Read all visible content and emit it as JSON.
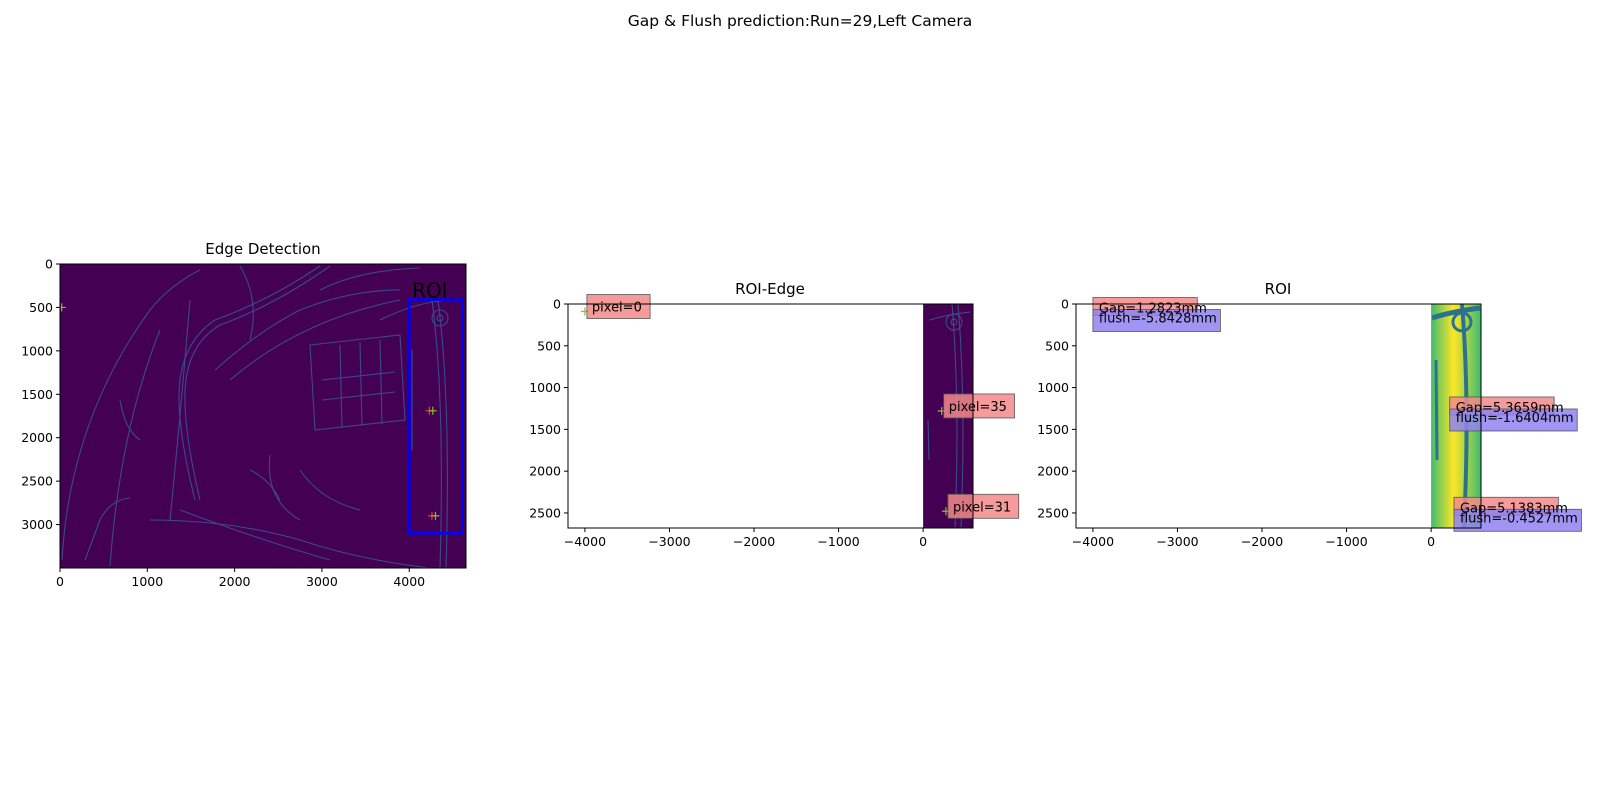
{
  "suptitle": "Gap & Flush prediction:Run=29,Left Camera",
  "colors": {
    "image_background": "#440154",
    "edge_lines": "#3b528b",
    "roi_box": "#0000ff",
    "pixel_label_box": "#f48a8a",
    "gap_label_box": "#f48a8a",
    "flush_label_box": "#8f82f0",
    "marker_red": "#e0442c",
    "marker_green": "#8bbf2a",
    "roi_image_low": "#fde725",
    "roi_image_mid": "#3fbc73",
    "roi_image_high": "#2c728e"
  },
  "chart_data": [
    {
      "type": "image",
      "title": "Edge Detection",
      "image": "edge-detection-map",
      "xlim": [
        0,
        4650
      ],
      "ylim": [
        3500,
        0
      ],
      "xticks": [
        "0",
        "1000",
        "2000",
        "3000",
        "4000"
      ],
      "xtick_values": [
        0,
        1000,
        2000,
        3000,
        4000
      ],
      "yticks": [
        "0",
        "500",
        "1000",
        "1500",
        "2000",
        "2500",
        "3000"
      ],
      "ytick_values": [
        0,
        500,
        1000,
        1500,
        2000,
        2500,
        3000
      ],
      "roi_rect": {
        "label": "ROI",
        "x0": 4000,
        "y0": 410,
        "x1": 4610,
        "y1": 3100
      },
      "markers": [
        {
          "x": 20,
          "y": 500,
          "color": "marker_green"
        },
        {
          "x": 4230,
          "y": 1690,
          "color": "marker_red"
        },
        {
          "x": 4270,
          "y": 1690,
          "color": "marker_green"
        },
        {
          "x": 4260,
          "y": 2900,
          "color": "marker_red"
        },
        {
          "x": 4300,
          "y": 2900,
          "color": "marker_green"
        }
      ]
    },
    {
      "type": "image",
      "title": "ROI-Edge",
      "image": "roi-edge-strip",
      "image_extent": {
        "x0": 0,
        "x1": 590,
        "y0": 0,
        "y1": 2680
      },
      "xlim": [
        -4200,
        590
      ],
      "ylim": [
        2680,
        0
      ],
      "xticks": [
        "−4000",
        "−3000",
        "−2000",
        "−1000",
        "0"
      ],
      "xtick_values": [
        -4000,
        -3000,
        -2000,
        -1000,
        0
      ],
      "yticks": [
        "0",
        "500",
        "1000",
        "1500",
        "2000",
        "2500"
      ],
      "ytick_values": [
        0,
        500,
        1000,
        1500,
        2000,
        2500
      ],
      "annotations": [
        {
          "text": "pixel=0",
          "x": -4000,
          "y": 90
        },
        {
          "text": "pixel=35",
          "x": 220,
          "y": 1280
        },
        {
          "text": "pixel=31",
          "x": 270,
          "y": 2480
        }
      ]
    },
    {
      "type": "image",
      "title": "ROI",
      "image": "roi-photo-strip",
      "image_extent": {
        "x0": 0,
        "x1": 590,
        "y0": 0,
        "y1": 2680
      },
      "xlim": [
        -4200,
        590
      ],
      "ylim": [
        2680,
        0
      ],
      "xticks": [
        "−4000",
        "−3000",
        "−2000",
        "−1000",
        "0"
      ],
      "xtick_values": [
        -4000,
        -3000,
        -2000,
        -1000,
        0
      ],
      "yticks": [
        "0",
        "500",
        "1000",
        "1500",
        "2000",
        "2500"
      ],
      "ytick_values": [
        0,
        500,
        1000,
        1500,
        2000,
        2500
      ],
      "annotations": [
        {
          "gap": "Gap=1.2823mm",
          "flush": "flush=-5.8428mm",
          "x": -4000,
          "y": 90
        },
        {
          "gap": "Gap=5.3659mm",
          "flush": "flush=-1.6404mm",
          "x": 220,
          "y": 1280
        },
        {
          "gap": "Gap=5.1383mm",
          "flush": "flush=-0.4527mm",
          "x": 270,
          "y": 2480
        }
      ]
    }
  ]
}
